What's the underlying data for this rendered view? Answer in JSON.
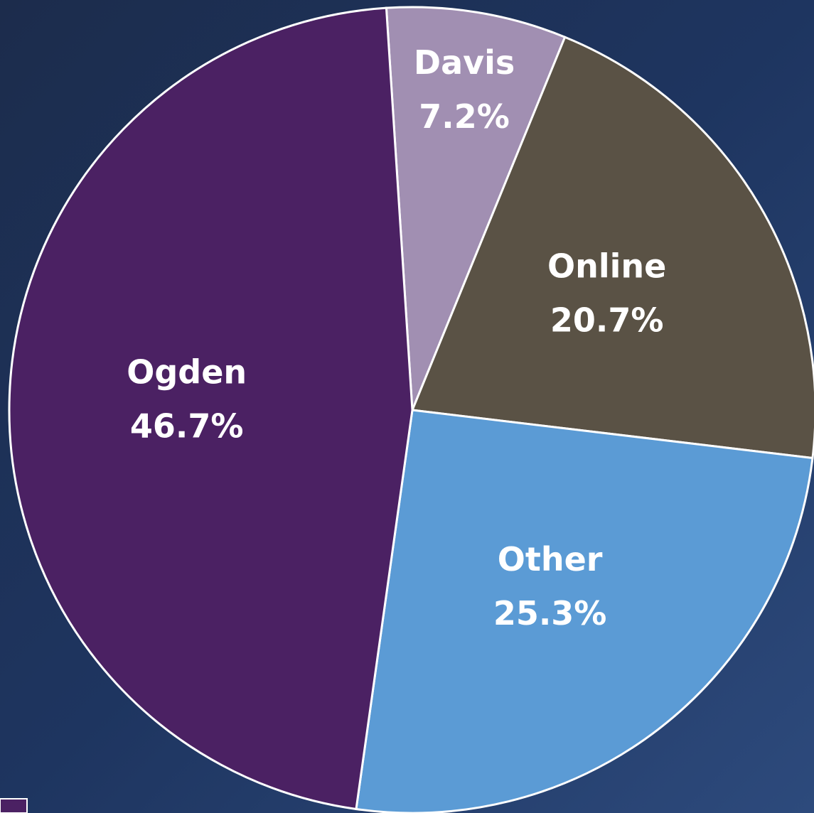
{
  "chart_data": {
    "type": "pie",
    "categories": [
      "Davis",
      "Online",
      "Other",
      "Ogden"
    ],
    "values": [
      7.2,
      20.7,
      25.3,
      46.7
    ],
    "value_labels": [
      "7.2%",
      "20.7%",
      "25.3%",
      "46.7%"
    ],
    "colors": [
      "#a18fb2",
      "#5a5245",
      "#5b9bd5",
      "#4b2163"
    ]
  }
}
